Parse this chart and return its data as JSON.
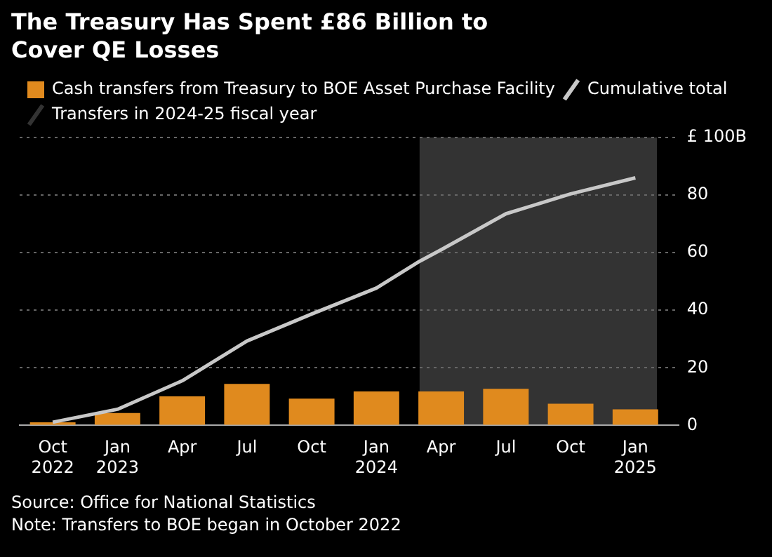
{
  "chart_data": {
    "type": "bar",
    "title": "The Treasury Has Spent £86 Billion to Cover QE Losses",
    "x": [
      "2022-10",
      "2023-01",
      "2023-04",
      "2023-07",
      "2023-10",
      "2024-01",
      "2024-04",
      "2024-07",
      "2024-10",
      "2025-01"
    ],
    "series": [
      {
        "name": "Cash transfers from Treasury to BOE Asset Purchase Facility",
        "color": "#e08a1e",
        "values": [
          1.1,
          4.3,
          10.1,
          14.4,
          9.3,
          11.8,
          11.8,
          12.7,
          7.5,
          5.6
        ]
      },
      {
        "type": "line",
        "name": "Cumulative total",
        "color": "#c8c8c8",
        "x": [
          "2022-10",
          "2023-01",
          "2023-04",
          "2023-07",
          "2023-10",
          "2024-01",
          "2024-03",
          "2024-04",
          "2024-07",
          "2024-10",
          "2025-01"
        ],
        "values": [
          1.1,
          5.6,
          15.5,
          29.3,
          38.7,
          47.7,
          57,
          61,
          73.5,
          80.4,
          86
        ]
      }
    ],
    "bands": [
      {
        "axis": "x",
        "from": "2024-03",
        "to": "2025-02",
        "label": "Transfers in 2024-25 fiscal year",
        "color": "#333333"
      }
    ],
    "xlim": [
      "2022-08-15",
      "2025-03"
    ],
    "xticks": [
      {
        "value": "2022-10",
        "label": "Oct 2022"
      },
      {
        "value": "2023-01",
        "label": "Jan 2023"
      },
      {
        "value": "2023-04",
        "label": "Apr"
      },
      {
        "value": "2023-07",
        "label": "Jul"
      },
      {
        "value": "2023-10",
        "label": "Oct"
      },
      {
        "value": "2024-01",
        "label": "Jan 2024"
      },
      {
        "value": "2024-04",
        "label": "Apr"
      },
      {
        "value": "2024-07",
        "label": "Jul"
      },
      {
        "value": "2024-10",
        "label": "Oct"
      },
      {
        "value": "2025-01",
        "label": "Jan 2025"
      }
    ],
    "ylim": [
      0,
      100
    ],
    "yticks": [
      0,
      20,
      40,
      60,
      80,
      {
        "value": 100,
        "label": "£ 100B"
      }
    ],
    "grid": "y",
    "legend": "top left",
    "annotations": [
      "Source: Office for National Statistics",
      "Note: Transfers to BOE began in October 2022"
    ]
  }
}
